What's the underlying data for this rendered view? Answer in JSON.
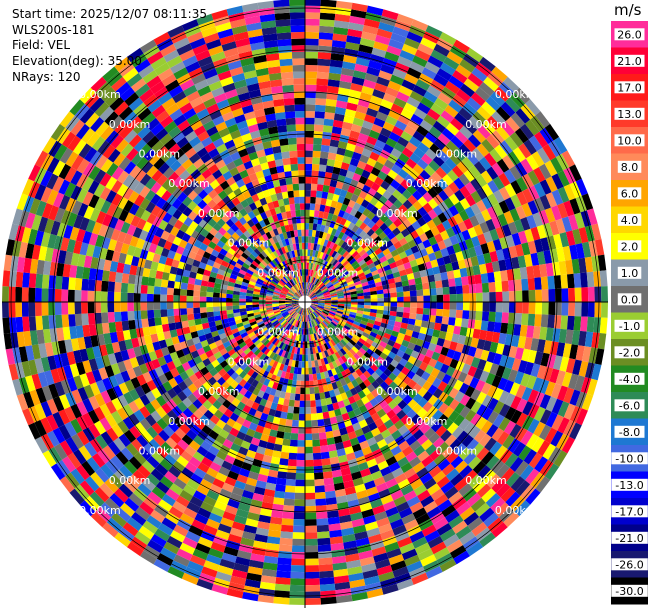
{
  "info": {
    "start_time": "Start time: 2025/12/07 08:11:35",
    "site": "WLS200s-181",
    "field": "Field: VEL",
    "elevation": "Elevation(deg): 35.00",
    "nrays": "NRays: 120"
  },
  "rings": {
    "label": "0.00km",
    "count": 7
  },
  "colorbar": {
    "unit": "m/s",
    "bins": [
      {
        "label": "26.0",
        "color": "#ff2d9a"
      },
      {
        "label": "21.0",
        "color": "#ff0037"
      },
      {
        "label": "17.0",
        "color": "#ff1a1a"
      },
      {
        "label": "13.0",
        "color": "#ff3a2a"
      },
      {
        "label": "10.0",
        "color": "#ff6a4a"
      },
      {
        "label": "8.0",
        "color": "#ff8a5a"
      },
      {
        "label": "6.0",
        "color": "#ffa500"
      },
      {
        "label": "4.0",
        "color": "#ffd700"
      },
      {
        "label": "2.0",
        "color": "#ffff00"
      },
      {
        "label": "1.0",
        "color": "#8a9aaa"
      },
      {
        "label": "0.0",
        "color": "#707070"
      },
      {
        "label": "-1.0",
        "color": "#9acd32"
      },
      {
        "label": "-2.0",
        "color": "#6b8e23"
      },
      {
        "label": "-4.0",
        "color": "#228b22"
      },
      {
        "label": "-6.0",
        "color": "#2e8b57"
      },
      {
        "label": "-8.0",
        "color": "#1e78d2"
      },
      {
        "label": "-10.0",
        "color": "#4169e1"
      },
      {
        "label": "-13.0",
        "color": "#0000ff"
      },
      {
        "label": "-17.0",
        "color": "#0000cd"
      },
      {
        "label": "-21.0",
        "color": "#00008b"
      },
      {
        "label": "-26.0",
        "color": "#191970"
      },
      {
        "label": "-30.0",
        "color": "#000000"
      }
    ]
  }
}
